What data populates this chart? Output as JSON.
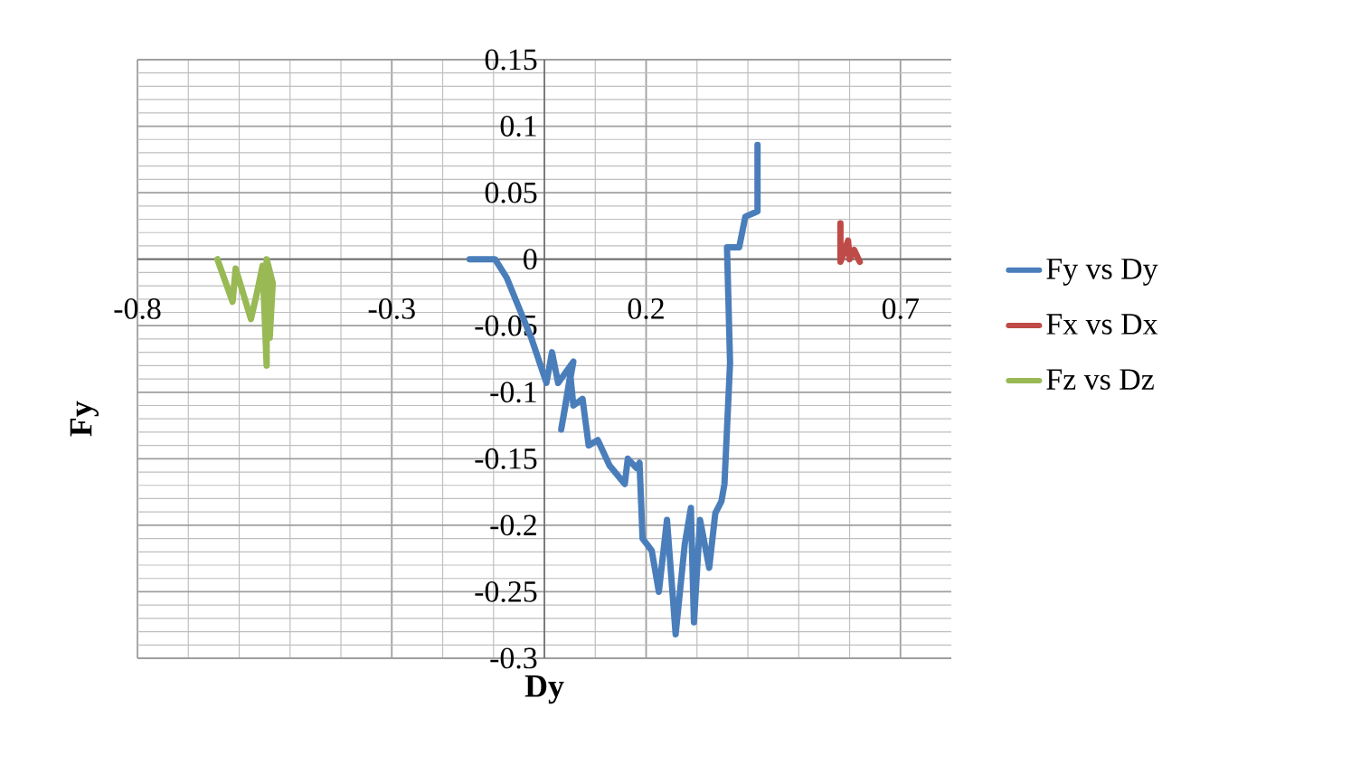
{
  "chart_data": {
    "type": "line",
    "xlabel": "Dy",
    "ylabel": "Fy",
    "xlim": [
      -0.8,
      0.8
    ],
    "xticks": [
      -0.8,
      -0.3,
      0.2,
      0.7
    ],
    "ylim": [
      -0.3,
      0.15
    ],
    "yticks": [
      -0.3,
      -0.25,
      -0.2,
      -0.15,
      -0.1,
      -0.05,
      0,
      0.05,
      0.1,
      0.15
    ],
    "grid": true,
    "legend": "right",
    "marker": "none",
    "line_style": "solid",
    "series": [
      {
        "name": "Fy vs Dy",
        "color": "#4a7ebb",
        "x": [
          -0.147,
          -0.097,
          -0.074,
          -0.026,
          0.004,
          0.015,
          0.027,
          0.057,
          0.033,
          0.051,
          0.057,
          0.075,
          0.087,
          0.105,
          0.128,
          0.158,
          0.164,
          0.181,
          0.187,
          0.193,
          0.211,
          0.225,
          0.241,
          0.258,
          0.276,
          0.288,
          0.294,
          0.306,
          0.324,
          0.336,
          0.348,
          0.354,
          0.365,
          0.359,
          0.383,
          0.395,
          0.419,
          0.419
        ],
        "values": [
          0,
          0,
          -0.014,
          -0.059,
          -0.093,
          -0.07,
          -0.093,
          -0.077,
          -0.128,
          -0.087,
          -0.11,
          -0.105,
          -0.14,
          -0.136,
          -0.155,
          -0.169,
          -0.15,
          -0.157,
          -0.153,
          -0.21,
          -0.219,
          -0.25,
          -0.196,
          -0.282,
          -0.214,
          -0.187,
          -0.273,
          -0.196,
          -0.232,
          -0.191,
          -0.182,
          -0.169,
          -0.078,
          0.009,
          0.009,
          0.032,
          0.036,
          0.086
        ]
      },
      {
        "name": "Fx vs Dx",
        "color": "#be4b48",
        "x": [
          0.582,
          0.582,
          0.597,
          0.6,
          0.609,
          0.62
        ],
        "values": [
          0.027,
          -0.002,
          0.014,
          0,
          0.007,
          -0.002
        ]
      },
      {
        "name": "Fz vs Dz",
        "color": "#98b954",
        "x": [
          -0.643,
          -0.613,
          -0.607,
          -0.577,
          -0.566,
          -0.554,
          -0.546,
          -0.546,
          -0.534,
          -0.54
        ],
        "values": [
          0,
          -0.032,
          -0.007,
          -0.045,
          -0.027,
          -0.005,
          -0.08,
          0,
          -0.018,
          -0.059
        ]
      }
    ]
  }
}
